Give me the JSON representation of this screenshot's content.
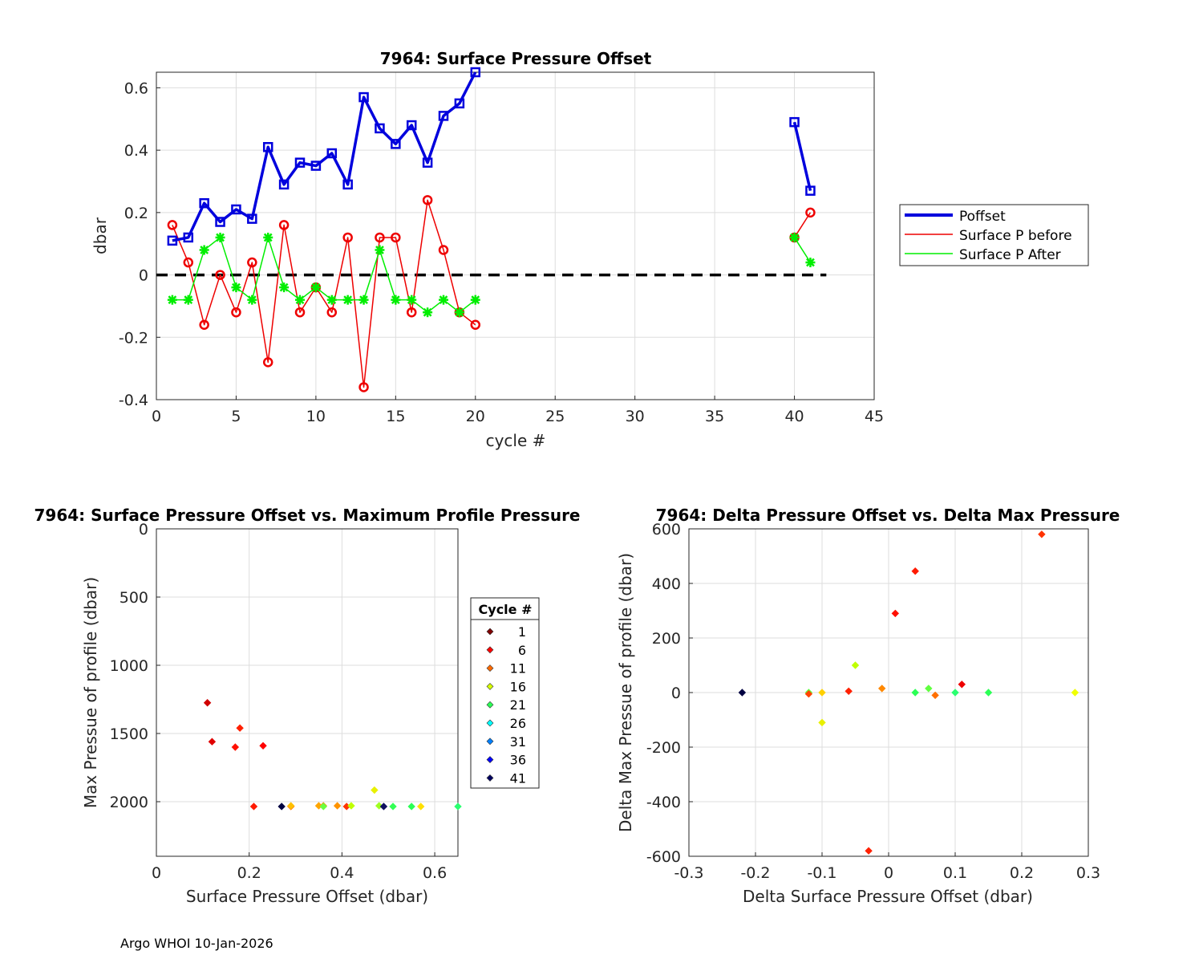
{
  "footer": "Argo WHOI 10-Jan-2026",
  "colors": {
    "poffset": "#0000dd",
    "before": "#ee0000",
    "after": "#00ee00",
    "zero_line": "#000000",
    "grid": "#dddddd"
  },
  "chart_data": [
    {
      "type": "line",
      "title": "7964: Surface Pressure Offset",
      "xlabel": "cycle #",
      "ylabel": "dbar",
      "xlim": [
        0,
        45
      ],
      "ylim": [
        -0.4,
        0.65
      ],
      "xticks": [
        0,
        5,
        10,
        15,
        20,
        25,
        30,
        35,
        40,
        45
      ],
      "yticks": [
        -0.4,
        -0.2,
        0,
        0.2,
        0.4,
        0.6
      ],
      "grid": true,
      "legend_position": "right",
      "zero_line": {
        "x": [
          0,
          42
        ],
        "y": 0,
        "style": "dashed"
      },
      "series": [
        {
          "name": "Poffset",
          "marker": "square",
          "segments": [
            {
              "x": [
                1,
                2,
                3,
                4,
                5,
                6,
                7,
                8,
                9,
                10,
                11,
                12,
                13,
                14,
                15,
                16,
                17,
                18,
                19,
                20
              ],
              "y": [
                0.11,
                0.12,
                0.23,
                0.17,
                0.21,
                0.18,
                0.41,
                0.29,
                0.36,
                0.35,
                0.39,
                0.29,
                0.57,
                0.47,
                0.42,
                0.48,
                0.36,
                0.51,
                0.55,
                0.65
              ]
            },
            {
              "x": [
                40,
                41
              ],
              "y": [
                0.49,
                0.27
              ]
            }
          ]
        },
        {
          "name": "Surface P before",
          "marker": "circle",
          "segments": [
            {
              "x": [
                1,
                2,
                3,
                4,
                5,
                6,
                7,
                8,
                9,
                10,
                11,
                12,
                13,
                14,
                15,
                16,
                17,
                18,
                19,
                20
              ],
              "y": [
                0.16,
                0.04,
                -0.16,
                0,
                -0.12,
                0.04,
                -0.28,
                0.16,
                -0.12,
                -0.04,
                -0.12,
                0.12,
                -0.36,
                0.12,
                0.12,
                -0.12,
                0.24,
                0.08,
                -0.12,
                -0.16
              ]
            },
            {
              "x": [
                40,
                41
              ],
              "y": [
                0.12,
                0.2
              ]
            }
          ]
        },
        {
          "name": "Surface P After",
          "marker": "star",
          "segments": [
            {
              "x": [
                1,
                2,
                3,
                4,
                5,
                6,
                7,
                8,
                9,
                10,
                11,
                12,
                13,
                14,
                15,
                16,
                17,
                18,
                19,
                20
              ],
              "y": [
                -0.08,
                -0.08,
                0.08,
                0.12,
                -0.04,
                -0.08,
                0.12,
                -0.04,
                -0.08,
                -0.04,
                -0.08,
                -0.08,
                -0.08,
                0.08,
                -0.08,
                -0.08,
                -0.12,
                -0.08,
                -0.12,
                -0.08
              ]
            },
            {
              "x": [
                40,
                41
              ],
              "y": [
                0.12,
                0.04
              ]
            }
          ]
        }
      ]
    },
    {
      "type": "scatter",
      "title": "7964: Surface Pressure Offset vs. Maximum Profile Pressure",
      "xlabel": "Surface Pressure Offset (dbar)",
      "ylabel": "Max Pressue of profile (dbar)",
      "xlim": [
        0,
        0.65
      ],
      "ylim": [
        2400,
        0
      ],
      "xticks": [
        0,
        0.2,
        0.4,
        0.6
      ],
      "yticks": [
        0,
        500,
        1000,
        1500,
        2000
      ],
      "grid": true,
      "legend_title": "Cycle #",
      "legend_position": "right",
      "legend_entries": [
        "1",
        "6",
        "11",
        "16",
        "21",
        "26",
        "31",
        "36",
        "41"
      ],
      "legend_colors": [
        "#800000",
        "#ff0000",
        "#ff6a00",
        "#d5ff00",
        "#2bff55",
        "#00ffff",
        "#0080ff",
        "#0000ff",
        "#000060"
      ],
      "points": [
        {
          "x": 0.11,
          "y": 1275,
          "color": "#d00000"
        },
        {
          "x": 0.12,
          "y": 1560,
          "color": "#e00000"
        },
        {
          "x": 0.23,
          "y": 1590,
          "color": "#ff0000"
        },
        {
          "x": 0.17,
          "y": 1600,
          "color": "#ff1000"
        },
        {
          "x": 0.21,
          "y": 2035,
          "color": "#ff1a00"
        },
        {
          "x": 0.18,
          "y": 1460,
          "color": "#ff2000"
        },
        {
          "x": 0.41,
          "y": 2035,
          "color": "#ff3300"
        },
        {
          "x": 0.29,
          "y": 2035,
          "color": "#ff6a00"
        },
        {
          "x": 0.36,
          "y": 2030,
          "color": "#ff8800"
        },
        {
          "x": 0.35,
          "y": 2030,
          "color": "#ffa500"
        },
        {
          "x": 0.39,
          "y": 2030,
          "color": "#ff9400"
        },
        {
          "x": 0.29,
          "y": 2030,
          "color": "#ffc000"
        },
        {
          "x": 0.57,
          "y": 2035,
          "color": "#ffe000"
        },
        {
          "x": 0.47,
          "y": 1915,
          "color": "#e8f000"
        },
        {
          "x": 0.42,
          "y": 2030,
          "color": "#c0ff00"
        },
        {
          "x": 0.48,
          "y": 2030,
          "color": "#a0ff20"
        },
        {
          "x": 0.36,
          "y": 2035,
          "color": "#6aff40"
        },
        {
          "x": 0.51,
          "y": 2035,
          "color": "#33ff55"
        },
        {
          "x": 0.55,
          "y": 2035,
          "color": "#2bff55"
        },
        {
          "x": 0.65,
          "y": 2035,
          "color": "#2bff70"
        },
        {
          "x": 0.49,
          "y": 2035,
          "color": "#101060"
        },
        {
          "x": 0.27,
          "y": 2035,
          "color": "#000040"
        }
      ]
    },
    {
      "type": "scatter",
      "title": "7964: Delta Pressure Offset vs. Delta Max Pressure",
      "xlabel": "Delta Surface Pressure Offset (dbar)",
      "ylabel": "Delta Max Pressue of profile (dbar)",
      "xlim": [
        -0.3,
        0.3
      ],
      "ylim": [
        -600,
        600
      ],
      "xticks": [
        -0.3,
        -0.2,
        -0.1,
        0,
        0.1,
        0.2,
        0.3
      ],
      "yticks": [
        -600,
        -400,
        -200,
        0,
        200,
        400,
        600
      ],
      "grid": true,
      "points": [
        {
          "x": 0.23,
          "y": 580,
          "color": "#ff3300"
        },
        {
          "x": 0.04,
          "y": 445,
          "color": "#ff1a00"
        },
        {
          "x": 0.01,
          "y": 290,
          "color": "#ff1000"
        },
        {
          "x": -0.05,
          "y": 100,
          "color": "#c0ff00"
        },
        {
          "x": 0.11,
          "y": 30,
          "color": "#ee0000"
        },
        {
          "x": 0.06,
          "y": 15,
          "color": "#60ff40"
        },
        {
          "x": -0.01,
          "y": 15,
          "color": "#ff8800"
        },
        {
          "x": -0.06,
          "y": 5,
          "color": "#ff2000"
        },
        {
          "x": -0.12,
          "y": 0,
          "color": "#60ff40"
        },
        {
          "x": -0.1,
          "y": 0,
          "color": "#ffd000"
        },
        {
          "x": 0.04,
          "y": 0,
          "color": "#2bff55"
        },
        {
          "x": 0.1,
          "y": 0,
          "color": "#2bff70"
        },
        {
          "x": 0.15,
          "y": 0,
          "color": "#2bff55"
        },
        {
          "x": 0.28,
          "y": 0,
          "color": "#f0ff00"
        },
        {
          "x": -0.22,
          "y": 0,
          "color": "#000040"
        },
        {
          "x": -0.12,
          "y": -5,
          "color": "#ff4400"
        },
        {
          "x": 0.07,
          "y": -10,
          "color": "#ff7000"
        },
        {
          "x": -0.1,
          "y": -110,
          "color": "#e8f000"
        },
        {
          "x": -0.03,
          "y": -580,
          "color": "#ff2000"
        }
      ]
    }
  ]
}
